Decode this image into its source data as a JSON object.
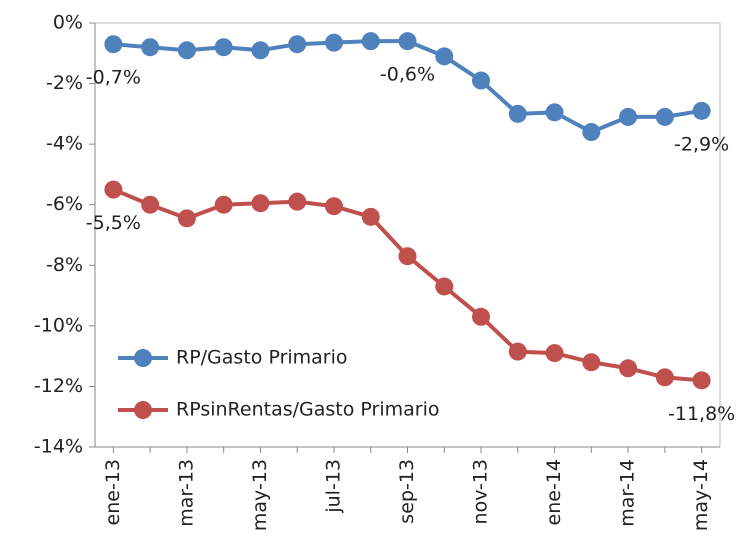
{
  "chart_data": {
    "type": "line",
    "categories": [
      "ene-13",
      null,
      "mar-13",
      null,
      "may-13",
      null,
      "jul-13",
      null,
      "sep-13",
      null,
      "nov-13",
      null,
      "ene-14",
      null,
      "mar-14",
      null,
      "may-14"
    ],
    "series": [
      {
        "name": "RP/Gasto Primario",
        "color": "#4f81bd",
        "values": [
          -0.7,
          -0.8,
          -0.9,
          -0.8,
          -0.9,
          -0.7,
          -0.65,
          -0.6,
          -0.6,
          -1.1,
          -1.9,
          -3.0,
          -2.95,
          -3.6,
          -3.1,
          -3.1,
          -2.9
        ],
        "value_labels": [
          "-0,7%",
          null,
          null,
          null,
          null,
          null,
          null,
          null,
          "-0,6%",
          null,
          null,
          null,
          null,
          null,
          null,
          null,
          "-2,9%"
        ]
      },
      {
        "name": "RPsinRentas/Gasto Primario",
        "color": "#c0504d",
        "values": [
          -5.5,
          -6.0,
          -6.45,
          -6.0,
          -5.95,
          -5.9,
          -6.05,
          -6.4,
          -7.7,
          -8.7,
          -9.7,
          -10.85,
          -10.9,
          -11.2,
          -11.4,
          -11.7,
          -11.8
        ],
        "value_labels": [
          "-5,5%",
          null,
          null,
          null,
          null,
          null,
          null,
          null,
          null,
          null,
          null,
          null,
          null,
          null,
          null,
          null,
          "-11,8%"
        ]
      }
    ],
    "ylim": [
      -14,
      0
    ],
    "yticks": [
      {
        "value": 0,
        "label": "0%"
      },
      {
        "value": -2,
        "label": "-2%"
      },
      {
        "value": -4,
        "label": "-4%"
      },
      {
        "value": -6,
        "label": "-6%"
      },
      {
        "value": -8,
        "label": "-8%"
      },
      {
        "value": -10,
        "label": "-10%"
      },
      {
        "value": -12,
        "label": "-12%"
      },
      {
        "value": -14,
        "label": "-14%"
      }
    ],
    "legend": "lower-left"
  }
}
